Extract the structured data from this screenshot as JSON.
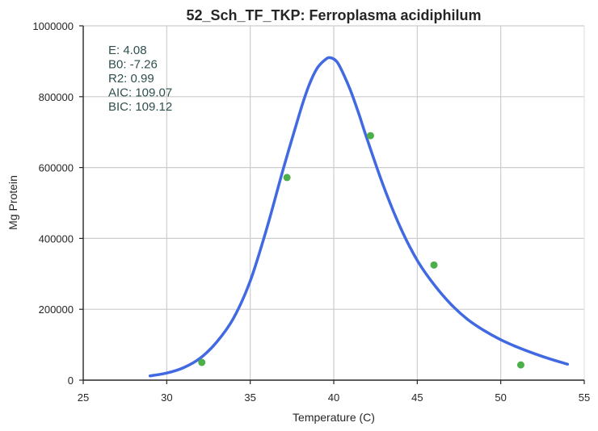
{
  "chart_data": {
    "type": "line",
    "title": "52_Sch_TF_TKP: Ferroplasma acidiphilum",
    "xlabel": "Temperature (C)",
    "ylabel": "Mg Protein",
    "xlim": [
      25,
      55
    ],
    "ylim": [
      0,
      1000000
    ],
    "xticks": [
      25,
      30,
      35,
      40,
      45,
      50,
      55
    ],
    "xtick_labels": [
      "25",
      "30",
      "35",
      "40",
      "45",
      "50",
      "55"
    ],
    "yticks": [
      0,
      200000,
      400000,
      600000,
      800000,
      1000000
    ],
    "ytick_labels": [
      "0",
      "200000",
      "400000",
      "600000",
      "800000",
      "1000000"
    ],
    "grid": true,
    "annotations": [
      "E:  4.08",
      "B0:  -7.26",
      "R2:  0.99",
      "AIC: 109.07",
      "BIC: 109.12"
    ],
    "series": [
      {
        "kind": "scatter",
        "color": "#4daf4a",
        "x": [
          32.1,
          37.2,
          42.2,
          46.0,
          51.2
        ],
        "y": [
          50000,
          572000,
          690000,
          325000,
          43000
        ]
      },
      {
        "kind": "line",
        "color": "#4169e1",
        "x": [
          29.0,
          30.0,
          31.0,
          32.0,
          33.0,
          34.0,
          35.0,
          36.0,
          37.0,
          38.0,
          38.5,
          39.0,
          39.5,
          39.8,
          40.2,
          40.6,
          41.0,
          41.5,
          42.0,
          43.0,
          44.0,
          45.0,
          46.0,
          47.0,
          48.0,
          49.0,
          50.0,
          51.0,
          52.0,
          53.0,
          54.0
        ],
        "y": [
          12000,
          20000,
          35000,
          62000,
          108000,
          175000,
          280000,
          430000,
          600000,
          760000,
          830000,
          880000,
          905000,
          910000,
          898000,
          862000,
          818000,
          752000,
          680000,
          545000,
          430000,
          338000,
          270000,
          215000,
          172000,
          140000,
          114000,
          93000,
          75000,
          59000,
          45000
        ]
      }
    ]
  }
}
